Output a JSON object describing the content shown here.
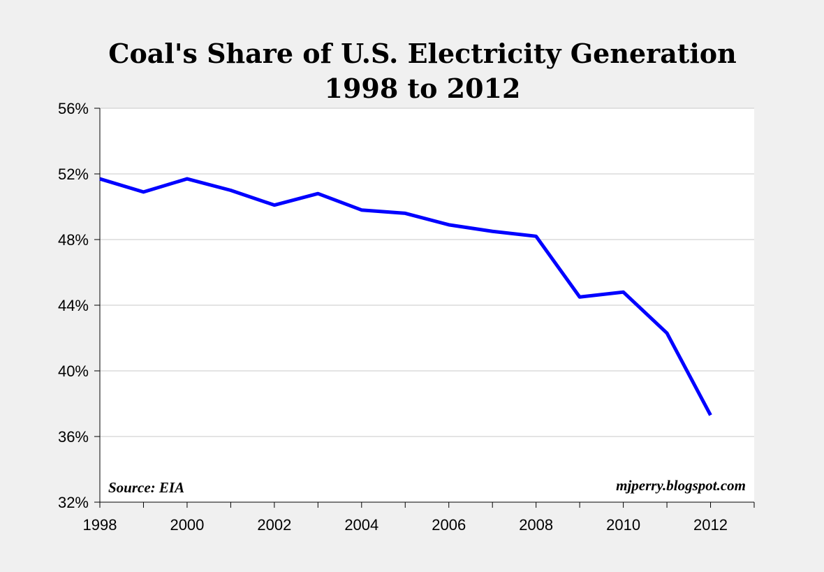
{
  "chart_data": {
    "type": "line",
    "title": "Coal's Share of U.S. Electricity Generation",
    "subtitle": "1998 to 2012",
    "xlabel": "",
    "ylabel": "",
    "x": [
      1998,
      1999,
      2000,
      2001,
      2002,
      2003,
      2004,
      2005,
      2006,
      2007,
      2008,
      2009,
      2010,
      2011,
      2012
    ],
    "series": [
      {
        "values": [
          51.7,
          50.9,
          51.7,
          51.0,
          50.1,
          50.8,
          49.8,
          49.6,
          48.9,
          48.5,
          48.2,
          44.5,
          44.8,
          42.3,
          37.3
        ],
        "color": "#0000ff"
      }
    ],
    "xlim": [
      1998,
      2013
    ],
    "ylim": [
      32,
      56
    ],
    "xticks": [
      1998,
      2000,
      2002,
      2004,
      2006,
      2008,
      2010,
      2012
    ],
    "xtick_labels": [
      "1998",
      "2000",
      "2002",
      "2004",
      "2006",
      "2008",
      "2010",
      "2012"
    ],
    "yticks": [
      32,
      36,
      40,
      44,
      48,
      52,
      56
    ],
    "ytick_labels": [
      "32%",
      "36%",
      "40%",
      "44%",
      "48%",
      "52%",
      "56%"
    ],
    "grid": true,
    "annotations": {
      "source": "Source: EIA",
      "credit": "mjperry.blogspot.com"
    }
  }
}
